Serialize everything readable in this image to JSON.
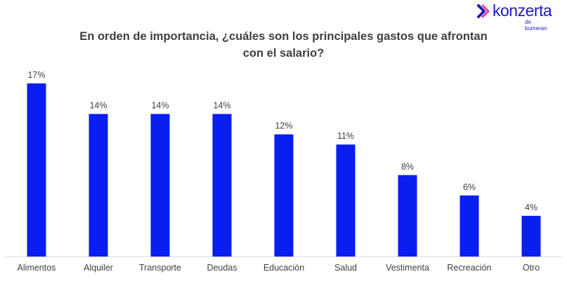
{
  "logo": {
    "word": "konzerta",
    "sub": "de bumeran",
    "colors": [
      "#1d1ab8",
      "#e8197d"
    ]
  },
  "title_lines": [
    "En orden de importancia, ¿cuáles son los principales gastos que afrontan",
    "con el salario?"
  ],
  "chart_data": {
    "type": "bar",
    "title": "En orden de importancia, ¿cuáles son los principales gastos que afrontan con el salario?",
    "categories": [
      "Alimentos",
      "Alquiler",
      "Transporte",
      "Deudas",
      "Educación",
      "Salud",
      "Vestimenta",
      "Recreación",
      "Otro"
    ],
    "values": [
      17,
      14,
      14,
      14,
      12,
      11,
      8,
      6,
      4
    ],
    "value_labels": [
      "17%",
      "14%",
      "14%",
      "14%",
      "12%",
      "11%",
      "8%",
      "6%",
      "4%"
    ],
    "unit": "%",
    "ylim": [
      0,
      17
    ],
    "grid": false,
    "bar_color": "#0a1ef0"
  }
}
